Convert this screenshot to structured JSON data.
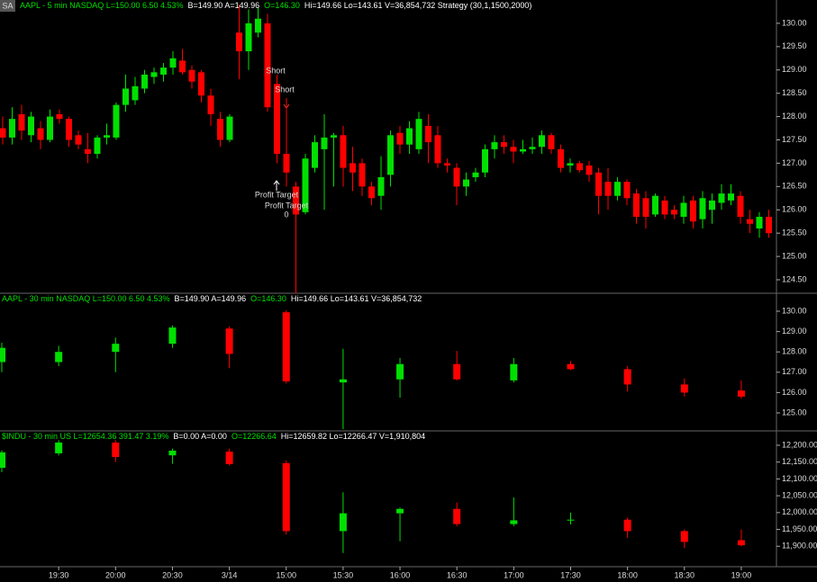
{
  "badge": "SA",
  "chart_data": [
    {
      "type": "candlestick",
      "up_color": "#00e000",
      "down_color": "#ff0000",
      "header": [
        {
          "text": "AAPL - 5 min  NASDAQ  L=150.00  6.50  4.53%",
          "color": "#00e000"
        },
        {
          "text": "B=149.90  A=149.96",
          "color": "#ffffff"
        },
        {
          "text": "O=146.30",
          "color": "#00e000"
        },
        {
          "text": "Hi=149.66  Lo=143.61  V=36,854,732  Strategy (30,1,1500,2000)",
          "color": "#ffffff"
        }
      ],
      "open": [
        127.75,
        127.55,
        128.05,
        127.6,
        127.75,
        127.5,
        128.05,
        127.95,
        127.6,
        127.3,
        127.2,
        127.55,
        127.55,
        128.25,
        128.35,
        128.6,
        128.85,
        128.9,
        129.05,
        129.2,
        129.0,
        128.95,
        128.45,
        127.95,
        127.5,
        129.8,
        129.4,
        129.8,
        130.0,
        128.7,
        127.2,
        126.5,
        125.95,
        126.9,
        127.3,
        127.55,
        127.6,
        127.0,
        127.0,
        126.5,
        126.3,
        126.75,
        127.65,
        127.4,
        127.3,
        127.8,
        127.6,
        127.0,
        126.9,
        126.5,
        126.7,
        126.8,
        127.3,
        127.45,
        127.35,
        127.25,
        127.3,
        127.35,
        127.6,
        127.3,
        126.95,
        127.0,
        126.95,
        126.8,
        126.6,
        126.3,
        126.6,
        126.35,
        126.25,
        125.9,
        126.2,
        126.0,
        125.85,
        126.2,
        125.8,
        126.0,
        126.15,
        126.2,
        126.3,
        125.8,
        125.6,
        125.85
      ],
      "high": [
        128.0,
        128.2,
        128.25,
        128.1,
        127.9,
        128.15,
        128.15,
        128.0,
        127.7,
        127.65,
        127.6,
        127.85,
        128.3,
        128.9,
        128.85,
        129.0,
        129.05,
        129.15,
        129.4,
        129.45,
        129.1,
        129.0,
        128.6,
        128.1,
        128.05,
        130.4,
        130.3,
        130.35,
        130.2,
        128.9,
        128.4,
        126.6,
        127.2,
        127.6,
        128.05,
        127.65,
        127.8,
        127.35,
        127.1,
        126.6,
        127.15,
        127.7,
        127.8,
        127.9,
        128.1,
        128.05,
        127.8,
        127.1,
        127.0,
        126.8,
        126.9,
        127.4,
        127.6,
        127.6,
        127.5,
        127.5,
        127.55,
        127.7,
        127.65,
        127.4,
        127.1,
        127.05,
        127.05,
        126.9,
        126.9,
        126.7,
        126.65,
        126.45,
        126.4,
        126.35,
        126.3,
        126.1,
        126.3,
        126.3,
        126.4,
        126.35,
        126.55,
        126.55,
        126.4,
        126.0,
        125.95,
        126.0
      ],
      "low": [
        127.4,
        127.4,
        127.5,
        127.45,
        127.3,
        127.45,
        127.85,
        127.35,
        127.3,
        127.0,
        127.1,
        127.4,
        127.5,
        128.1,
        128.25,
        128.5,
        128.7,
        128.75,
        128.9,
        128.9,
        128.6,
        128.3,
        127.8,
        127.35,
        127.45,
        128.8,
        129.0,
        129.7,
        128.1,
        127.0,
        126.5,
        124.2,
        125.9,
        126.8,
        126.0,
        126.5,
        126.5,
        126.4,
        126.3,
        126.1,
        126.0,
        126.5,
        127.2,
        127.2,
        127.2,
        127.0,
        126.9,
        126.8,
        126.1,
        126.3,
        126.6,
        126.7,
        127.1,
        127.2,
        127.0,
        127.2,
        127.2,
        127.2,
        127.2,
        126.8,
        126.8,
        126.8,
        126.6,
        125.9,
        126.0,
        126.2,
        126.1,
        125.7,
        125.6,
        125.85,
        125.8,
        125.8,
        125.7,
        125.6,
        125.6,
        125.7,
        126.0,
        126.1,
        125.7,
        125.5,
        125.4,
        125.4
      ],
      "close": [
        127.55,
        127.95,
        127.7,
        128.0,
        127.5,
        128.0,
        127.95,
        127.5,
        127.4,
        127.2,
        127.55,
        127.6,
        128.25,
        128.6,
        128.65,
        128.9,
        128.95,
        129.05,
        129.25,
        128.95,
        128.75,
        128.45,
        128.05,
        127.5,
        128.0,
        129.4,
        130.0,
        130.1,
        128.2,
        127.2,
        126.8,
        125.9,
        127.1,
        127.45,
        127.55,
        127.6,
        126.9,
        126.8,
        126.5,
        126.25,
        126.7,
        127.6,
        127.4,
        127.75,
        127.95,
        127.45,
        127.0,
        126.95,
        126.5,
        126.65,
        126.8,
        127.3,
        127.45,
        127.35,
        127.25,
        127.3,
        127.35,
        127.6,
        127.3,
        126.9,
        127.0,
        126.85,
        126.75,
        126.3,
        126.3,
        126.6,
        126.25,
        125.85,
        125.85,
        126.3,
        125.9,
        125.9,
        126.15,
        125.75,
        126.25,
        126.2,
        126.35,
        126.35,
        125.85,
        125.7,
        125.85,
        125.5
      ],
      "ylim": [
        124.23,
        130.5
      ],
      "yticks": [
        {
          "value": 124.5,
          "label": "124.50"
        },
        {
          "value": 125,
          "label": "125.00"
        },
        {
          "value": 125.5,
          "label": "125.50"
        },
        {
          "value": 126,
          "label": "126.00"
        },
        {
          "value": 126.5,
          "label": "126.50"
        },
        {
          "value": 127,
          "label": "127.00"
        },
        {
          "value": 127.5,
          "label": "127.50"
        },
        {
          "value": 128,
          "label": "128.00"
        },
        {
          "value": 128.5,
          "label": "128.50"
        },
        {
          "value": 129,
          "label": "129.00"
        },
        {
          "value": 129.5,
          "label": "129.50"
        },
        {
          "value": 130,
          "label": "130.00"
        }
      ],
      "annotations": [
        "Short",
        "Short",
        "Profit Target",
        "Profit Target",
        "0"
      ]
    },
    {
      "type": "candlestick",
      "up_color": "#00e000",
      "down_color": "#ff0000",
      "header": [
        {
          "text": "AAPL - 30 min  NASDAQ  L=150.00  6.50  4.53%",
          "color": "#00e000"
        },
        {
          "text": "B=149.90  A=149.96",
          "color": "#ffffff"
        },
        {
          "text": "O=146.30",
          "color": "#00e000"
        },
        {
          "text": "Hi=149.66  Lo=143.61  V=36,854,732",
          "color": "#ffffff"
        }
      ],
      "open": [
        127.5,
        127.5,
        128.0,
        128.4,
        129.15,
        129.95,
        126.5,
        126.65,
        127.4,
        126.6,
        127.4,
        127.15,
        126.4,
        126.1
      ],
      "high": [
        128.45,
        128.3,
        128.7,
        129.3,
        129.25,
        130.05,
        128.15,
        127.7,
        128.05,
        127.7,
        127.55,
        127.3,
        126.7,
        126.6
      ],
      "low": [
        127.0,
        127.3,
        127.0,
        128.2,
        127.2,
        126.45,
        124.2,
        125.75,
        126.6,
        126.5,
        127.1,
        126.05,
        125.8,
        125.7
      ],
      "close": [
        128.2,
        128.0,
        128.4,
        129.2,
        127.9,
        126.55,
        126.65,
        127.4,
        126.65,
        127.4,
        127.15,
        126.4,
        126.0,
        125.8
      ],
      "ylim": [
        124.16,
        130.84
      ],
      "yticks": [
        {
          "value": 125,
          "label": "125.00"
        },
        {
          "value": 126,
          "label": "126.00"
        },
        {
          "value": 127,
          "label": "127.00"
        },
        {
          "value": 128,
          "label": "128.00"
        },
        {
          "value": 129,
          "label": "129.00"
        },
        {
          "value": 130,
          "label": "130.00"
        }
      ]
    },
    {
      "type": "candlestick",
      "up_color": "#00e000",
      "down_color": "#ff0000",
      "header": [
        {
          "text": "$INDU - 30 min  US  L=12654.36  391.47  3.19%",
          "color": "#00e000"
        },
        {
          "text": "B=0.00  A=0.00",
          "color": "#ffffff"
        },
        {
          "text": "O=12266.64",
          "color": "#00e000"
        },
        {
          "text": "Hi=12659.82  Lo=12266.47  V=1,910,804",
          "color": "#ffffff"
        }
      ],
      "open": [
        12133,
        12176,
        12208,
        12170,
        12181,
        12147,
        11945,
        11998,
        12011,
        11966,
        11977,
        11979,
        11945,
        11918
      ],
      "high": [
        12185,
        12215,
        12215,
        12190,
        12190,
        12155,
        12060,
        12015,
        12030,
        12045,
        12000,
        11985,
        11950,
        11950
      ],
      "low": [
        12120,
        12170,
        12150,
        12145,
        12140,
        11935,
        11880,
        11915,
        11960,
        11960,
        11965,
        11925,
        11895,
        11900
      ],
      "close": [
        12179,
        12208,
        12165,
        12184,
        12144,
        11945,
        11998,
        12011,
        11966,
        11977,
        11979,
        11945,
        11913,
        11903
      ],
      "ylim": [
        11842,
        12240
      ],
      "yticks": [
        {
          "value": 11900,
          "label": "11,900.00"
        },
        {
          "value": 11950,
          "label": "11,950.00"
        },
        {
          "value": 12000,
          "label": "12,000.00"
        },
        {
          "value": 12050,
          "label": "12,050.00"
        },
        {
          "value": 12100,
          "label": "12,100.00"
        },
        {
          "value": 12150,
          "label": "12,150.00"
        },
        {
          "value": 12200,
          "label": "12,200.00"
        }
      ],
      "x_labels": [
        "19:30",
        "20:00",
        "20:30",
        "3/14",
        "15:00",
        "15:30",
        "16:00",
        "16:30",
        "17:00",
        "17:30",
        "18:00",
        "18:30",
        "19:00"
      ]
    }
  ]
}
